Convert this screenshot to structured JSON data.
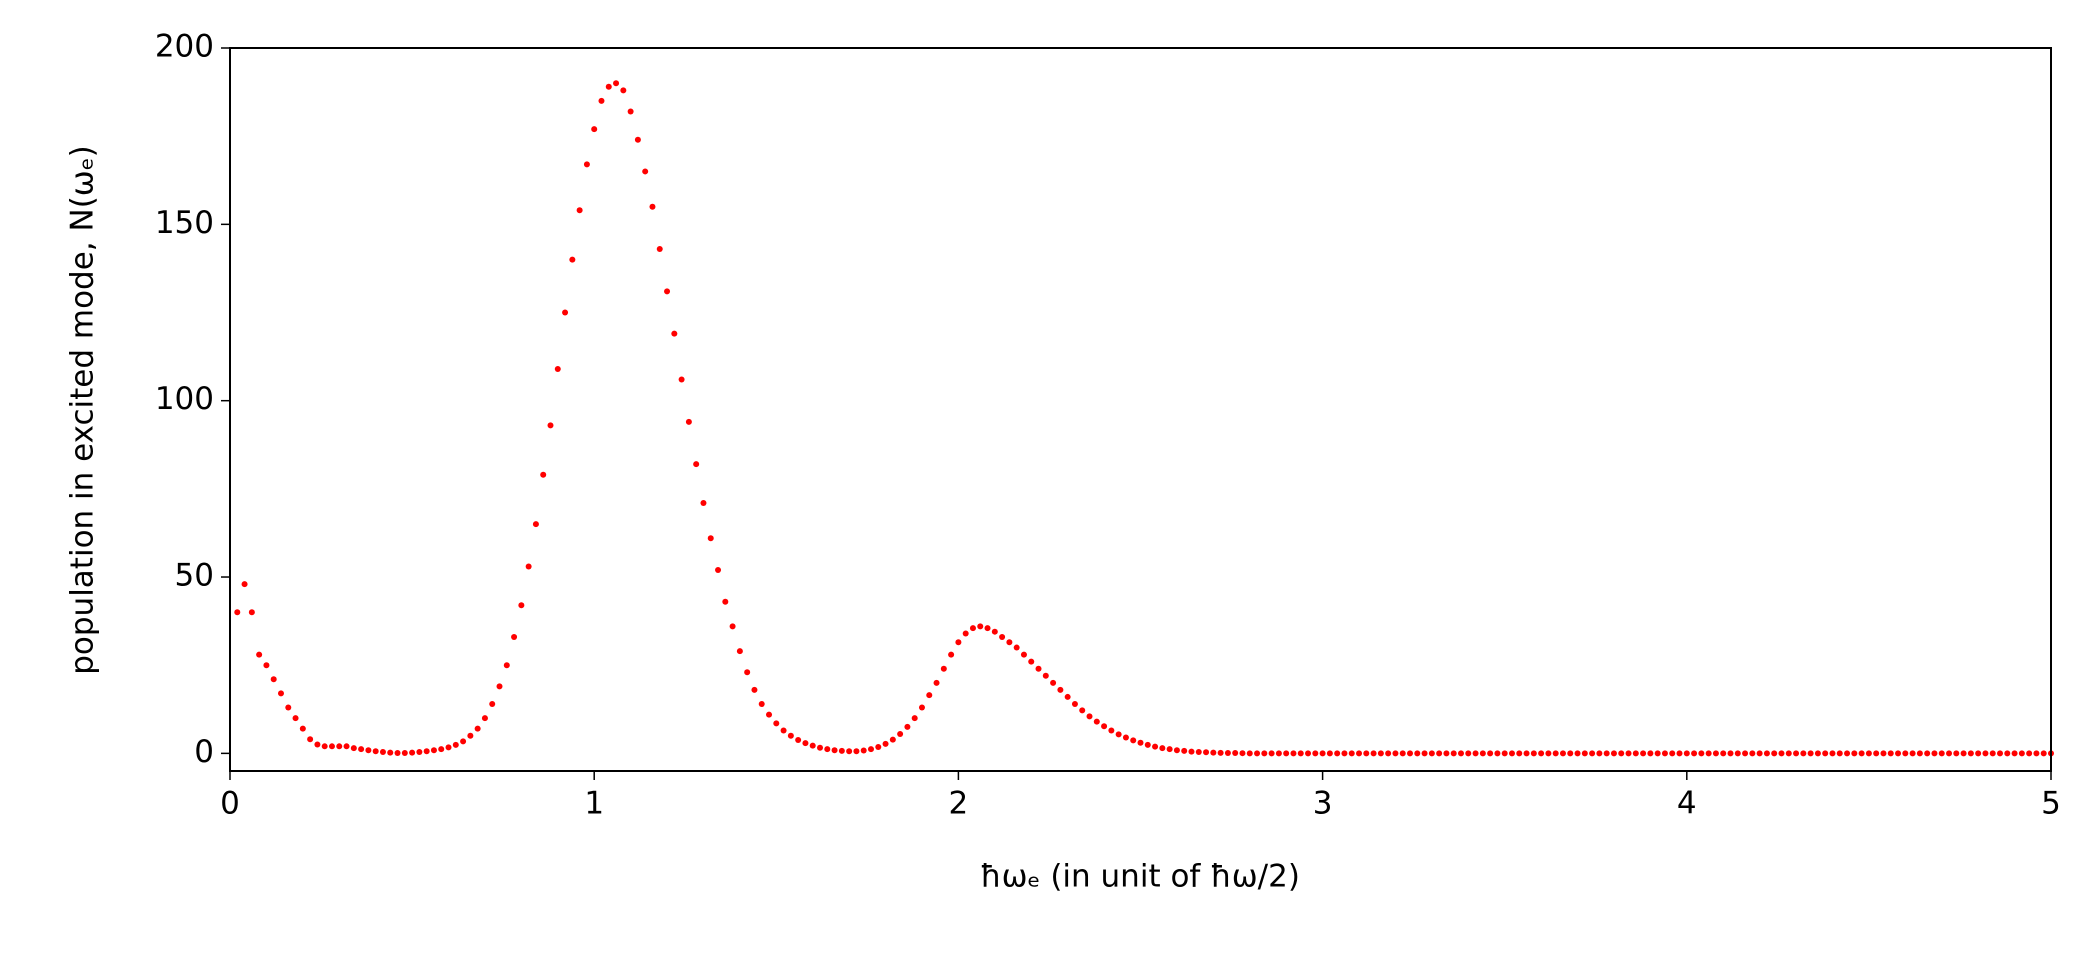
{
  "chart_data": {
    "type": "scatter",
    "x_label": "ħωₑ (in unit of ħω/2)",
    "y_label": "population in excited mode, N(ωₑ)",
    "color": "#ff0000",
    "xlim": [
      0,
      5
    ],
    "ylim": [
      -5,
      200
    ],
    "xticks": [
      0,
      1,
      2,
      3,
      4,
      5
    ],
    "yticks": [
      0,
      50,
      100,
      150,
      200
    ],
    "grid": false,
    "x": [
      0.02,
      0.04,
      0.06,
      0.08,
      0.1,
      0.12,
      0.14,
      0.16,
      0.18,
      0.2,
      0.22,
      0.24,
      0.26,
      0.28,
      0.3,
      0.32,
      0.34,
      0.36,
      0.38,
      0.4,
      0.42,
      0.44,
      0.46,
      0.48,
      0.5,
      0.52,
      0.54,
      0.56,
      0.58,
      0.6,
      0.62,
      0.64,
      0.66,
      0.68,
      0.7,
      0.72,
      0.74,
      0.76,
      0.78,
      0.8,
      0.82,
      0.84,
      0.86,
      0.88,
      0.9,
      0.92,
      0.94,
      0.96,
      0.98,
      1,
      1.02,
      1.04,
      1.06,
      1.08,
      1.1,
      1.12,
      1.14,
      1.16,
      1.18,
      1.2,
      1.22,
      1.24,
      1.26,
      1.28,
      1.3,
      1.32,
      1.34,
      1.36,
      1.38,
      1.4,
      1.42,
      1.44,
      1.46,
      1.48,
      1.5,
      1.52,
      1.54,
      1.56,
      1.58,
      1.6,
      1.62,
      1.64,
      1.66,
      1.68,
      1.7,
      1.72,
      1.74,
      1.76,
      1.78,
      1.8,
      1.82,
      1.84,
      1.86,
      1.88,
      1.9,
      1.92,
      1.94,
      1.96,
      1.98,
      2,
      2.02,
      2.04,
      2.06,
      2.08,
      2.1,
      2.12,
      2.14,
      2.16,
      2.18,
      2.2,
      2.22,
      2.24,
      2.26,
      2.28,
      2.3,
      2.32,
      2.34,
      2.36,
      2.38,
      2.4,
      2.42,
      2.44,
      2.46,
      2.48,
      2.5,
      2.52,
      2.54,
      2.56,
      2.58,
      2.6,
      2.62,
      2.64,
      2.66,
      2.68,
      2.7,
      2.72,
      2.74,
      2.76,
      2.78,
      2.8,
      2.82,
      2.84,
      2.86,
      2.88,
      2.9,
      2.92,
      2.94,
      2.96,
      2.98,
      3,
      3.02,
      3.04,
      3.06,
      3.08,
      3.1,
      3.12,
      3.14,
      3.16,
      3.18,
      3.2,
      3.22,
      3.24,
      3.26,
      3.28,
      3.3,
      3.32,
      3.34,
      3.36,
      3.38,
      3.4,
      3.42,
      3.44,
      3.46,
      3.48,
      3.5,
      3.52,
      3.54,
      3.56,
      3.58,
      3.6,
      3.62,
      3.64,
      3.66,
      3.68,
      3.7,
      3.72,
      3.74,
      3.76,
      3.78,
      3.8,
      3.82,
      3.84,
      3.86,
      3.88,
      3.9,
      3.92,
      3.94,
      3.96,
      3.98,
      4,
      4.02,
      4.04,
      4.06,
      4.08,
      4.1,
      4.12,
      4.14,
      4.16,
      4.18,
      4.2,
      4.22,
      4.24,
      4.26,
      4.28,
      4.3,
      4.32,
      4.34,
      4.36,
      4.38,
      4.4,
      4.42,
      4.44,
      4.46,
      4.48,
      4.5,
      4.52,
      4.54,
      4.56,
      4.58,
      4.6,
      4.62,
      4.64,
      4.66,
      4.68,
      4.7,
      4.72,
      4.74,
      4.76,
      4.78,
      4.8,
      4.82,
      4.84,
      4.86,
      4.88,
      4.9,
      4.92,
      4.94,
      4.96,
      4.98,
      5
    ],
    "values": [
      40,
      48,
      40,
      28,
      25,
      21,
      17,
      13,
      10,
      7,
      4,
      2.5,
      2,
      2,
      2,
      2,
      1.5,
      1.2,
      0.9,
      0.6,
      0.4,
      0.2,
      0.1,
      0.1,
      0.2,
      0.4,
      0.6,
      0.9,
      1.2,
      1.7,
      2.4,
      3.4,
      5,
      7,
      10,
      14,
      19,
      25,
      33,
      42,
      53,
      65,
      79,
      93,
      109,
      125,
      140,
      154,
      167,
      177,
      185,
      189,
      190,
      188,
      182,
      174,
      165,
      155,
      143,
      131,
      119,
      106,
      94,
      82,
      71,
      61,
      52,
      43,
      36,
      29,
      23,
      18,
      14,
      11,
      8.5,
      6.5,
      5,
      3.8,
      2.9,
      2.2,
      1.6,
      1.2,
      0.9,
      0.7,
      0.6,
      0.6,
      0.8,
      1.2,
      1.8,
      2.7,
      3.9,
      5.5,
      7.5,
      10,
      13,
      16.5,
      20,
      24,
      28,
      31.5,
      34,
      35.5,
      36,
      35.5,
      34.5,
      33,
      31.5,
      30,
      28,
      26,
      24,
      22,
      20,
      18,
      16,
      14,
      12.2,
      10.5,
      9,
      7.7,
      6.5,
      5.4,
      4.5,
      3.7,
      3,
      2.4,
      1.9,
      1.5,
      1.2,
      0.9,
      0.7,
      0.5,
      0.4,
      0.3,
      0.2,
      0.15,
      0.1,
      0.1,
      0.05,
      0,
      0,
      0,
      0,
      0,
      0,
      0,
      0,
      0,
      0,
      0,
      0,
      0,
      0,
      0,
      0,
      0,
      0,
      0,
      0,
      0,
      0,
      0,
      0,
      0,
      0,
      0,
      0,
      0,
      0,
      0,
      0,
      0,
      0,
      0,
      0,
      0,
      0,
      0,
      0,
      0,
      0,
      0,
      0,
      0,
      0,
      0,
      0,
      0,
      0,
      0,
      0,
      0,
      0,
      0,
      0,
      0,
      0,
      0,
      0,
      0,
      0,
      0,
      0,
      0,
      0,
      0,
      0,
      0,
      0,
      0,
      0,
      0,
      0,
      0,
      0,
      0,
      0,
      0,
      0,
      0,
      0,
      0,
      0,
      0,
      0,
      0,
      0,
      0,
      0,
      0,
      0,
      0,
      0,
      0,
      0,
      0,
      0,
      0,
      0,
      0,
      0,
      0,
      0,
      0,
      0,
      0,
      0,
      0,
      0,
      0
    ]
  }
}
